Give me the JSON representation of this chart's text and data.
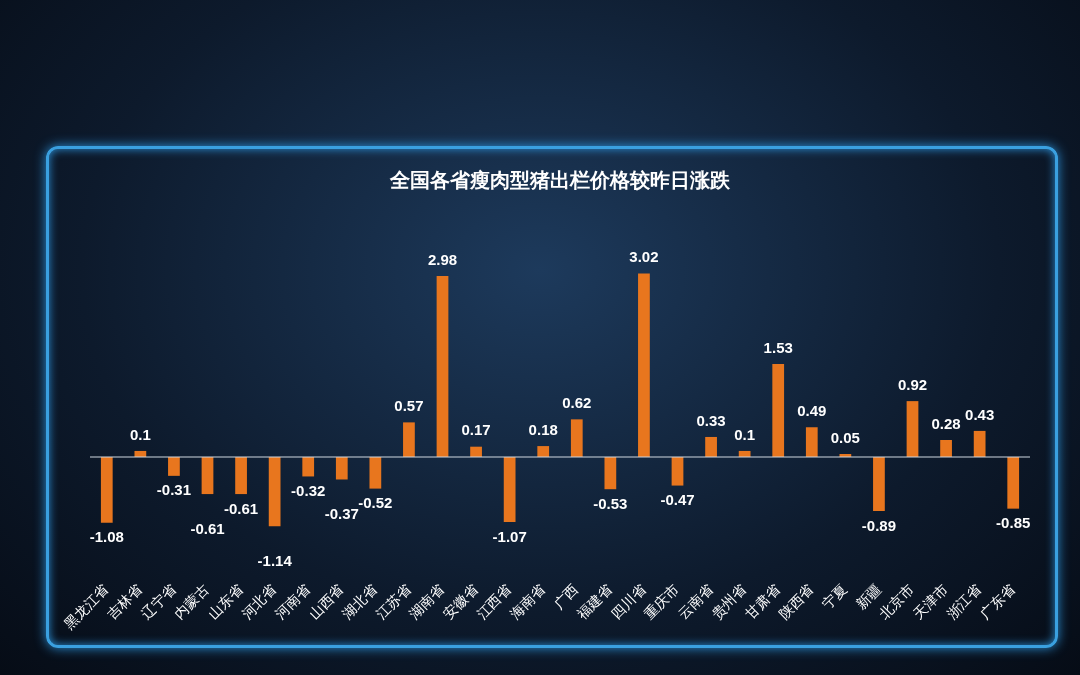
{
  "chart_data": {
    "type": "bar",
    "title": "全国各省瘦肉型猪出栏价格较昨日涨跌",
    "categories": [
      "黑龙江省",
      "吉林省",
      "辽宁省",
      "内蒙古",
      "山东省",
      "河北省",
      "河南省",
      "山西省",
      "湖北省",
      "江苏省",
      "湖南省",
      "安徽省",
      "江西省",
      "海南省",
      "广西",
      "福建省",
      "四川省",
      "重庆市",
      "云南省",
      "贵州省",
      "甘肃省",
      "陕西省",
      "宁夏",
      "新疆",
      "北京市",
      "天津市",
      "浙江省",
      "广东省"
    ],
    "values": [
      -1.08,
      0.1,
      -0.31,
      -0.61,
      -0.61,
      -1.14,
      -0.32,
      -0.37,
      -0.52,
      0.57,
      2.98,
      0.17,
      -1.07,
      0.18,
      0.62,
      -0.53,
      3.02,
      -0.47,
      0.33,
      0.1,
      1.53,
      0.49,
      0.05,
      -0.89,
      0.92,
      0.28,
      0.43,
      -0.85
    ],
    "color": "#e8761e",
    "data_labels": true,
    "grid": false,
    "legend": false
  }
}
